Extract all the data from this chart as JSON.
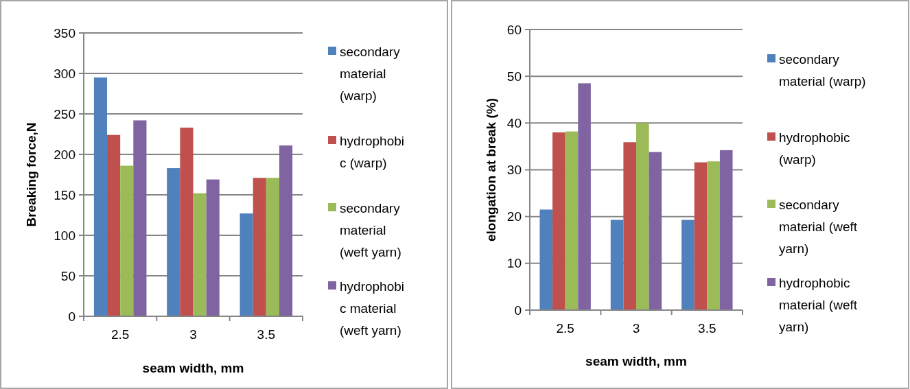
{
  "chart_data": [
    {
      "type": "bar",
      "xlabel": "seam width, mm",
      "ylabel": "Breaking force,N",
      "categories": [
        "2.5",
        "3",
        "3.5"
      ],
      "series": [
        {
          "name": "secondary material (warp)",
          "color": "#4f81bd",
          "values": [
            295,
            183,
            127
          ]
        },
        {
          "name": "hydrophobic (warp)",
          "color": "#c0504d",
          "values": [
            224,
            233,
            171
          ]
        },
        {
          "name": "secondary material (weft yarn)",
          "color": "#9bbb59",
          "values": [
            186,
            152,
            171
          ]
        },
        {
          "name": "hydrophobic material (weft yarn)",
          "color": "#8064a2",
          "values": [
            242,
            169,
            211
          ]
        }
      ],
      "ylim": [
        0,
        350
      ],
      "yticks": [
        0,
        50,
        100,
        150,
        200,
        250,
        300,
        350
      ],
      "grid": "y",
      "legend": "right"
    },
    {
      "type": "bar",
      "xlabel": "seam width, mm",
      "ylabel": "elongation at break (%)",
      "categories": [
        "2.5",
        "3",
        "3.5"
      ],
      "series": [
        {
          "name": "secondary material (warp)",
          "color": "#4f81bd",
          "values": [
            21.5,
            19.3,
            19.3
          ]
        },
        {
          "name": "hydrophobic (warp)",
          "color": "#c0504d",
          "values": [
            38,
            35.9,
            31.6
          ]
        },
        {
          "name": "secondary material (weft yarn)",
          "color": "#9bbb59",
          "values": [
            38.2,
            40,
            31.8
          ]
        },
        {
          "name": "hydrophobic material (weft yarn)",
          "color": "#8064a2",
          "values": [
            48.5,
            33.8,
            34.2
          ]
        }
      ],
      "ylim": [
        0,
        60
      ],
      "yticks": [
        0,
        10,
        20,
        30,
        40,
        50,
        60
      ],
      "grid": "y",
      "legend": "right"
    }
  ]
}
